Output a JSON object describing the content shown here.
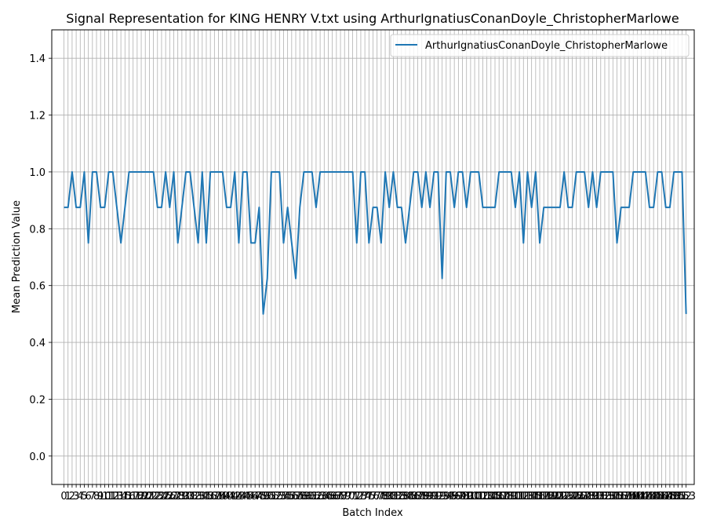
{
  "chart_data": {
    "type": "line",
    "title": "Signal Representation for KING HENRY V.txt using ArthurIgnatiusConanDoyle_ChristopherMarlowe",
    "xlabel": "Batch Index",
    "ylabel": "Mean Prediction Value",
    "xlim": [
      -3,
      155
    ],
    "ylim": [
      -0.1,
      1.5
    ],
    "yticks": [
      0.0,
      0.2,
      0.4,
      0.6,
      0.8,
      1.0,
      1.2,
      1.4
    ],
    "ytick_labels": [
      "0.0",
      "0.2",
      "0.4",
      "0.6",
      "0.8",
      "1.0",
      "1.2",
      "1.4"
    ],
    "grid": true,
    "legend_position": "top-right",
    "series": [
      {
        "name": "ArthurIgnatiusConanDoyle_ChristopherMarlowe",
        "color": "#1f77b4",
        "x": [
          0,
          1,
          2,
          3,
          4,
          5,
          6,
          7,
          8,
          9,
          10,
          11,
          12,
          13,
          14,
          15,
          16,
          17,
          18,
          19,
          20,
          21,
          22,
          23,
          24,
          25,
          26,
          27,
          28,
          29,
          30,
          31,
          32,
          33,
          34,
          35,
          36,
          37,
          38,
          39,
          40,
          41,
          42,
          43,
          44,
          45,
          46,
          47,
          48,
          49,
          50,
          51,
          52,
          53,
          54,
          55,
          56,
          57,
          58,
          59,
          60,
          61,
          62,
          63,
          64,
          65,
          66,
          67,
          68,
          69,
          70,
          71,
          72,
          73,
          74,
          75,
          76,
          77,
          78,
          79,
          80,
          81,
          82,
          83,
          84,
          85,
          86,
          87,
          88,
          89,
          90,
          91,
          92,
          93,
          94,
          95,
          96,
          97,
          98,
          99,
          100,
          101,
          102,
          103,
          104,
          105,
          106,
          107,
          108,
          109,
          110,
          111,
          112,
          113,
          114,
          115,
          116,
          117,
          118,
          119,
          120,
          121,
          122,
          123,
          124,
          125,
          126,
          127,
          128,
          129,
          130,
          131,
          132,
          133,
          134,
          135,
          136,
          137,
          138,
          139,
          140,
          141,
          142,
          143,
          144,
          145,
          146,
          147,
          148,
          149,
          150,
          151,
          152,
          153
        ],
        "y": [
          0.875,
          0.875,
          1.0,
          0.875,
          0.875,
          1.0,
          0.75,
          1.0,
          1.0,
          0.875,
          0.875,
          1.0,
          1.0,
          0.875,
          0.75,
          0.875,
          1.0,
          1.0,
          1.0,
          1.0,
          1.0,
          1.0,
          1.0,
          0.875,
          0.875,
          1.0,
          0.875,
          1.0,
          0.75,
          0.875,
          1.0,
          1.0,
          0.875,
          0.75,
          1.0,
          0.75,
          1.0,
          1.0,
          1.0,
          1.0,
          0.875,
          0.875,
          1.0,
          0.75,
          1.0,
          1.0,
          0.75,
          0.75,
          0.875,
          0.5,
          0.625,
          1.0,
          1.0,
          1.0,
          0.75,
          0.875,
          0.75,
          0.625,
          0.875,
          1.0,
          1.0,
          1.0,
          0.875,
          1.0,
          1.0,
          1.0,
          1.0,
          1.0,
          1.0,
          1.0,
          1.0,
          1.0,
          0.75,
          1.0,
          1.0,
          0.75,
          0.875,
          0.875,
          0.75,
          1.0,
          0.875,
          1.0,
          0.875,
          0.875,
          0.75,
          0.875,
          1.0,
          1.0,
          0.875,
          1.0,
          0.875,
          1.0,
          1.0,
          0.625,
          1.0,
          1.0,
          0.875,
          1.0,
          1.0,
          0.875,
          1.0,
          1.0,
          1.0,
          0.875,
          0.875,
          0.875,
          0.875,
          1.0,
          1.0,
          1.0,
          1.0,
          0.875,
          1.0,
          0.75,
          1.0,
          0.875,
          1.0,
          0.75,
          0.875,
          0.875,
          0.875,
          0.875,
          0.875,
          1.0,
          0.875,
          0.875,
          1.0,
          1.0,
          1.0,
          0.875,
          1.0,
          0.875,
          1.0,
          1.0,
          1.0,
          1.0,
          0.75,
          0.875,
          0.875,
          0.875,
          1.0,
          1.0,
          1.0,
          1.0,
          0.875,
          0.875,
          1.0,
          1.0,
          0.875,
          0.875,
          1.0,
          1.0,
          1.0,
          0.5
        ]
      }
    ]
  }
}
